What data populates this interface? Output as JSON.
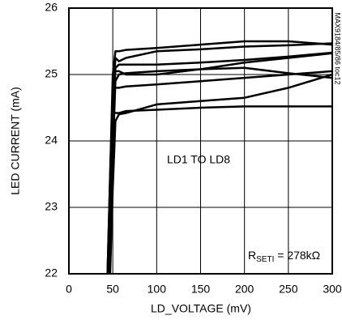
{
  "chart_data": {
    "type": "line",
    "xlabel": "LD_VOLTAGE (mV)",
    "ylabel": "LED CURRENT (mA)",
    "annotations": {
      "label": "LD1 TO LD8",
      "rset_main": "R",
      "rset_sub": "SETI",
      "rset_rest": " = 278kΩ",
      "side": "MAX9184/85/86 toc12"
    },
    "color": "#000000",
    "grid": true,
    "xlim": [
      0,
      300
    ],
    "xticks": [
      0,
      50,
      100,
      150,
      200,
      250,
      300
    ],
    "ylim": [
      22,
      26
    ],
    "yticks": [
      22,
      23,
      24,
      25,
      26
    ],
    "x": [
      44,
      47,
      50,
      53,
      57,
      65,
      100,
      150,
      200,
      250,
      300
    ],
    "series": [
      {
        "values": [
          22.0,
          23.5,
          25.0,
          25.35,
          25.35,
          25.37,
          25.4,
          25.45,
          25.5,
          25.5,
          25.45
        ]
      },
      {
        "values": [
          21.8,
          22.8,
          24.6,
          25.25,
          25.2,
          25.25,
          25.35,
          25.38,
          25.42,
          25.44,
          25.47
        ]
      },
      {
        "values": [
          21.7,
          22.5,
          24.2,
          25.1,
          25.15,
          25.15,
          25.15,
          25.18,
          25.22,
          25.27,
          25.33
        ]
      },
      {
        "values": [
          21.9,
          23.2,
          24.8,
          25.05,
          25.05,
          25.0,
          25.0,
          25.08,
          25.18,
          25.25,
          25.32
        ]
      },
      {
        "values": [
          22.0,
          23.5,
          24.8,
          24.8,
          24.8,
          24.82,
          24.85,
          24.9,
          24.95,
          25.0,
          25.05
        ]
      },
      {
        "values": [
          21.6,
          22.3,
          23.8,
          24.9,
          25.0,
          25.02,
          25.05,
          25.08,
          25.1,
          25.02,
          24.95
        ]
      },
      {
        "values": [
          21.5,
          22.0,
          23.3,
          24.3,
          24.4,
          24.42,
          24.55,
          24.6,
          24.65,
          24.8,
          25.0
        ]
      },
      {
        "values": [
          21.7,
          22.5,
          24.45,
          24.42,
          24.42,
          24.45,
          24.47,
          24.5,
          24.52,
          24.52,
          24.52
        ]
      }
    ]
  }
}
